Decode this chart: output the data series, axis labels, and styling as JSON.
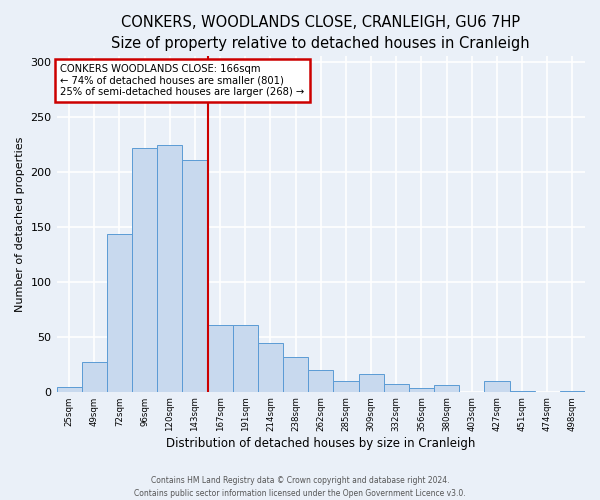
{
  "title": "CONKERS, WOODLANDS CLOSE, CRANLEIGH, GU6 7HP",
  "subtitle": "Size of property relative to detached houses in Cranleigh",
  "xlabel": "Distribution of detached houses by size in Cranleigh",
  "ylabel": "Number of detached properties",
  "bar_labels": [
    "25sqm",
    "49sqm",
    "72sqm",
    "96sqm",
    "120sqm",
    "143sqm",
    "167sqm",
    "191sqm",
    "214sqm",
    "238sqm",
    "262sqm",
    "285sqm",
    "309sqm",
    "332sqm",
    "356sqm",
    "380sqm",
    "403sqm",
    "427sqm",
    "451sqm",
    "474sqm",
    "498sqm"
  ],
  "bar_values": [
    4,
    27,
    143,
    222,
    224,
    211,
    61,
    61,
    44,
    32,
    20,
    10,
    16,
    7,
    3,
    6,
    0,
    10,
    1,
    0,
    1
  ],
  "bar_color": "#c8d9ee",
  "bar_edge_color": "#5b9bd5",
  "vline_index": 6,
  "annotation_title": "CONKERS WOODLANDS CLOSE: 166sqm",
  "annotation_line1": "← 74% of detached houses are smaller (801)",
  "annotation_line2": "25% of semi-detached houses are larger (268) →",
  "annotation_box_color": "#ffffff",
  "annotation_box_edgecolor": "#cc0000",
  "vline_color": "#cc0000",
  "background_color": "#eaf0f8",
  "plot_bg_color": "#eaf0f8",
  "grid_color": "#ffffff",
  "footer1": "Contains HM Land Registry data © Crown copyright and database right 2024.",
  "footer2": "Contains public sector information licensed under the Open Government Licence v3.0.",
  "ylim": [
    0,
    305
  ],
  "yticks": [
    0,
    50,
    100,
    150,
    200,
    250,
    300
  ],
  "title_fontsize": 10.5,
  "subtitle_fontsize": 9
}
